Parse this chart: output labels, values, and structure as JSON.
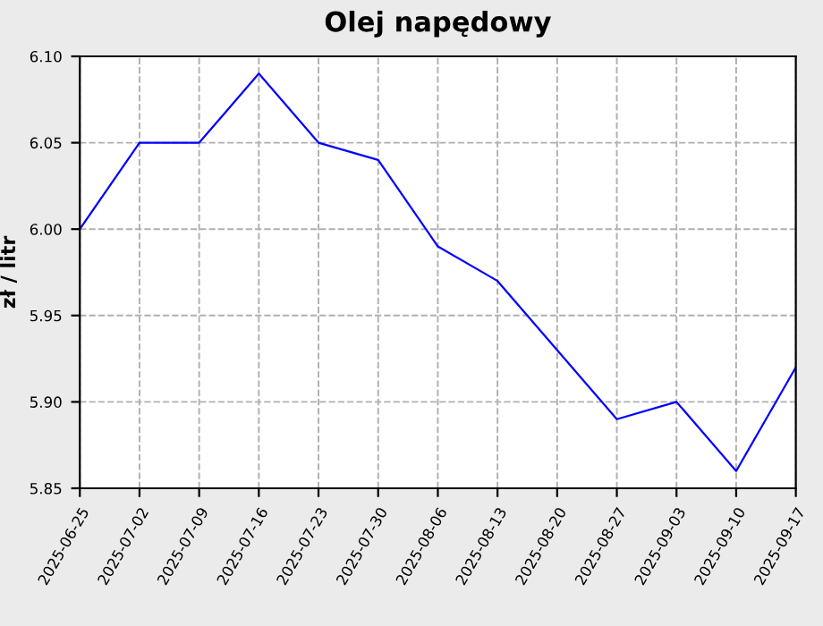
{
  "chart_data": {
    "type": "line",
    "title": "Olej napędowy",
    "ylabel": "zł / litr",
    "categories": [
      "2025-06-25",
      "2025-07-02",
      "2025-07-09",
      "2025-07-16",
      "2025-07-23",
      "2025-07-30",
      "2025-08-06",
      "2025-08-13",
      "2025-08-20",
      "2025-08-27",
      "2025-09-03",
      "2025-09-10",
      "2025-09-17"
    ],
    "series": [
      {
        "color": "#0000ff",
        "values": [
          6.0,
          6.05,
          6.05,
          6.09,
          6.05,
          6.04,
          5.99,
          5.97,
          5.93,
          5.89,
          5.9,
          5.86,
          5.92
        ]
      }
    ],
    "ylim": [
      5.85,
      6.1
    ],
    "yticks": [
      {
        "value": 5.85,
        "label": "5.85"
      },
      {
        "value": 5.9,
        "label": "5.90"
      },
      {
        "value": 5.95,
        "label": "5.95"
      },
      {
        "value": 6.0,
        "label": "6.00"
      },
      {
        "value": 6.05,
        "label": "6.05"
      },
      {
        "value": 6.1,
        "label": "6.10"
      }
    ],
    "grid": true,
    "line_style": "solid",
    "marker": "none"
  }
}
